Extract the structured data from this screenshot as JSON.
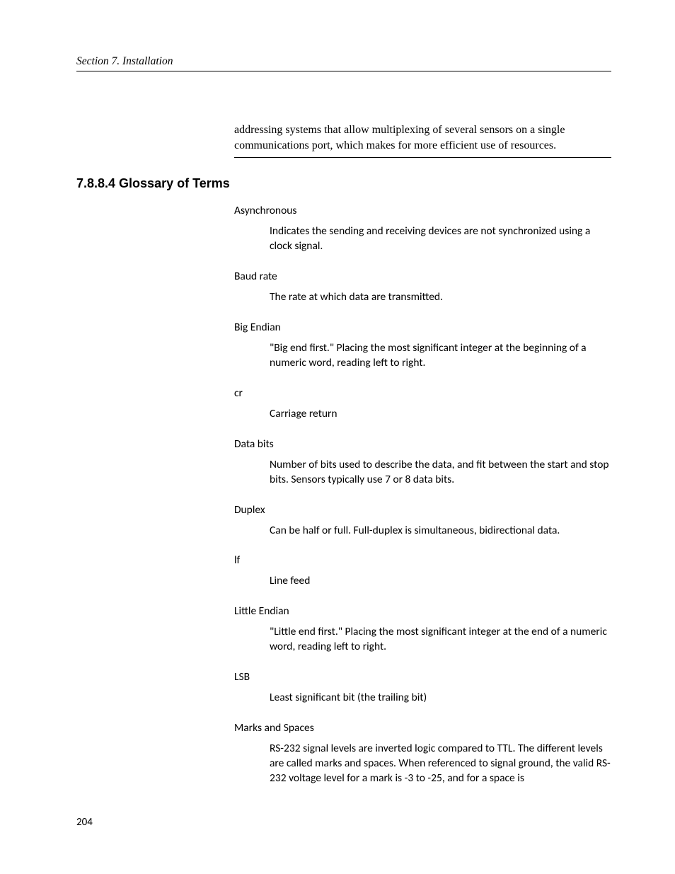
{
  "runningHead": "Section 7.  Installation",
  "intro": "addressing systems that allow multiplexing of several sensors on a single communications port, which makes for more efficient use of resources.",
  "sectionHeading": "7.8.8.4 Glossary of Terms",
  "terms": [
    {
      "term": "Asynchronous",
      "definition": "Indicates the sending and receiving devices are not synchronized using a clock signal."
    },
    {
      "term": "Baud rate",
      "definition": "The rate at which data are transmitted."
    },
    {
      "term": "Big Endian",
      "definition": "\"Big end first.\" Placing the most significant integer at the beginning of a numeric word, reading left to right."
    },
    {
      "term": "cr",
      "definition": "Carriage return"
    },
    {
      "term": "Data bits",
      "definition": "Number of bits used to describe the data, and fit between the start and stop bits. Sensors typically use 7 or 8 data bits."
    },
    {
      "term": "Duplex",
      "definition": "Can be half or full. Full-duplex is simultaneous, bidirectional data."
    },
    {
      "term": "lf",
      "definition": "Line feed"
    },
    {
      "term": "Little Endian",
      "definition": "\"Little end first.\" Placing the most significant integer at the end of a numeric word, reading left to right."
    },
    {
      "term": "LSB",
      "definition": "Least significant bit (the trailing bit)"
    },
    {
      "term": "Marks and Spaces",
      "definition": "RS-232 signal levels are inverted logic compared to TTL. The different levels are called marks and spaces. When referenced to signal ground, the valid RS-232 voltage level for a mark is -3 to -25, and for a space is"
    }
  ],
  "pageNumber": "204"
}
